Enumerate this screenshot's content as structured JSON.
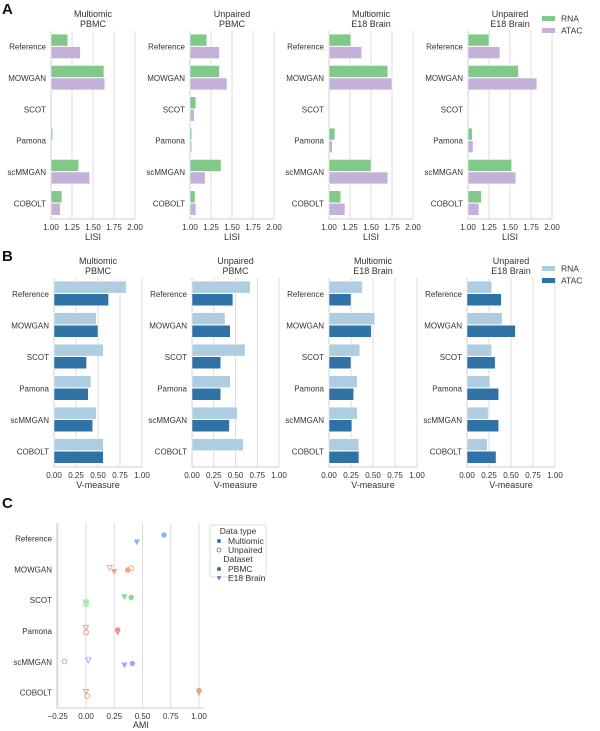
{
  "panel_labels": [
    "A",
    "B",
    "C"
  ],
  "chart_data": [
    {
      "id": "A",
      "type": "bar",
      "orientation": "horizontal",
      "xlabel": "LISI",
      "xlim": [
        1.0,
        2.0
      ],
      "xticks": [
        "1.00",
        "1.25",
        "1.50",
        "1.75",
        "2.00"
      ],
      "xtick_values": [
        1.0,
        1.25,
        1.5,
        1.75,
        2.0
      ],
      "grid": true,
      "legend": {
        "placement": "top-right",
        "entries": [
          {
            "name": "RNA",
            "color": "#82c88a"
          },
          {
            "name": "ATAC",
            "color": "#c3b1d9"
          }
        ]
      },
      "categories": [
        "Reference",
        "MOWGAN",
        "SCOT",
        "Pamona",
        "scMMGAN",
        "COBOLT"
      ],
      "subplots": [
        {
          "title": [
            "Multiomic",
            "PBMC"
          ],
          "series": [
            {
              "name": "RNA",
              "values": [
                1.2,
                1.63,
                1.0,
                1.02,
                1.33,
                1.13
              ]
            },
            {
              "name": "ATAC",
              "values": [
                1.35,
                1.64,
                1.0,
                1.0,
                1.46,
                1.11
              ]
            }
          ]
        },
        {
          "title": [
            "Unpaired",
            "PBMC"
          ],
          "series": [
            {
              "name": "RNA",
              "values": [
                1.2,
                1.35,
                1.07,
                1.02,
                1.37,
                1.06
              ]
            },
            {
              "name": "ATAC",
              "values": [
                1.35,
                1.44,
                1.05,
                1.02,
                1.18,
                1.07
              ]
            }
          ]
        },
        {
          "title": [
            "Multiomic",
            "E18 Brain"
          ],
          "series": [
            {
              "name": "RNA",
              "values": [
                1.26,
                1.7,
                1.0,
                1.07,
                1.5,
                1.14
              ]
            },
            {
              "name": "ATAC",
              "values": [
                1.39,
                1.75,
                1.0,
                1.04,
                1.7,
                1.19
              ]
            }
          ]
        },
        {
          "title": [
            "Unpaired",
            "E18 Brain"
          ],
          "series": [
            {
              "name": "RNA",
              "values": [
                1.25,
                1.6,
                1.01,
                1.05,
                1.52,
                1.16
              ]
            },
            {
              "name": "ATAC",
              "values": [
                1.38,
                1.82,
                1.01,
                1.06,
                1.57,
                1.13
              ]
            }
          ]
        }
      ]
    },
    {
      "id": "B",
      "type": "bar",
      "orientation": "horizontal",
      "xlabel": "V-measure",
      "xlim": [
        0.0,
        1.0
      ],
      "xticks": [
        "0.00",
        "0.25",
        "0.50",
        "0.75",
        "1.00"
      ],
      "xtick_values": [
        0.0,
        0.25,
        0.5,
        0.75,
        1.0
      ],
      "grid": true,
      "legend": {
        "placement": "top-right",
        "entries": [
          {
            "name": "RNA",
            "color": "#aecde0"
          },
          {
            "name": "ATAC",
            "color": "#2f72a6"
          }
        ]
      },
      "categories": [
        "Reference",
        "MOWGAN",
        "SCOT",
        "Pamona",
        "scMMGAN",
        "COBOLT"
      ],
      "subplots": [
        {
          "title": [
            "Multiomic",
            "PBMC"
          ],
          "series": [
            {
              "name": "RNA",
              "values": [
                0.82,
                0.48,
                0.56,
                0.42,
                0.48,
                0.56
              ]
            },
            {
              "name": "ATAC",
              "values": [
                0.62,
                0.5,
                0.37,
                0.39,
                0.44,
                0.56
              ]
            }
          ]
        },
        {
          "title": [
            "Unpaired",
            "PBMC"
          ],
          "series": [
            {
              "name": "RNA",
              "values": [
                0.67,
                0.38,
                0.61,
                0.44,
                0.52,
                0.59
              ]
            },
            {
              "name": "ATAC",
              "values": [
                0.47,
                0.44,
                0.33,
                0.33,
                0.43,
                0.0
              ]
            }
          ]
        },
        {
          "title": [
            "Multiomic",
            "E18 Brain"
          ],
          "series": [
            {
              "name": "RNA",
              "values": [
                0.38,
                0.52,
                0.35,
                0.32,
                0.32,
                0.34
              ]
            },
            {
              "name": "ATAC",
              "values": [
                0.25,
                0.48,
                0.25,
                0.28,
                0.26,
                0.34
              ]
            }
          ]
        },
        {
          "title": [
            "Unpaired",
            "E18 Brain"
          ],
          "series": [
            {
              "name": "RNA",
              "values": [
                0.28,
                0.4,
                0.28,
                0.26,
                0.24,
                0.23
              ]
            },
            {
              "name": "ATAC",
              "values": [
                0.39,
                0.55,
                0.32,
                0.36,
                0.36,
                0.33
              ]
            }
          ]
        }
      ]
    },
    {
      "id": "C",
      "type": "scatter",
      "xlabel": "AMI",
      "xlim": [
        -0.28,
        1.05
      ],
      "xticks": [
        "−0.25",
        "0.00",
        "0.25",
        "0.50",
        "0.75",
        "1.00"
      ],
      "xtick_values": [
        -0.25,
        0.0,
        0.25,
        0.5,
        0.75,
        1.0
      ],
      "grid": true,
      "categories": [
        "Reference",
        "MOWGAN",
        "SCOT",
        "Pamona",
        "scMMGAN",
        "COBOLT"
      ],
      "category_colors": [
        "#8db4f0",
        "#f6a477",
        "#86dc92",
        "#f49090",
        "#b79cf2",
        "#dcaa7c"
      ],
      "legend": {
        "placement": "top-right",
        "groups": [
          {
            "title": "Data type",
            "entries": [
              {
                "name": "Multiomic",
                "marker": "filled-circle"
              },
              {
                "name": "Unpaired",
                "marker": "hollow-circle"
              }
            ]
          },
          {
            "title": "Dataset",
            "entries": [
              {
                "name": "PBMC",
                "marker": "circle"
              },
              {
                "name": "E18 Brain",
                "marker": "triangle-down"
              }
            ]
          }
        ],
        "marker_color": "#3b6fb6"
      },
      "points": [
        {
          "category": "Reference",
          "data_type": "Multiomic",
          "dataset": "PBMC",
          "x": 0.69,
          "offset": -1
        },
        {
          "category": "Reference",
          "data_type": "Multiomic",
          "dataset": "E18 Brain",
          "x": 0.45,
          "offset": 1
        },
        {
          "category": "MOWGAN",
          "data_type": "Unpaired",
          "dataset": "E18 Brain",
          "x": 0.21,
          "offset": -0.5
        },
        {
          "category": "MOWGAN",
          "data_type": "Multiomic",
          "dataset": "E18 Brain",
          "x": 0.25,
          "offset": 0.6
        },
        {
          "category": "MOWGAN",
          "data_type": "Multiomic",
          "dataset": "PBMC",
          "x": 0.37,
          "offset": 0.2
        },
        {
          "category": "MOWGAN",
          "data_type": "Unpaired",
          "dataset": "PBMC",
          "x": 0.4,
          "offset": -0.3
        },
        {
          "category": "SCOT",
          "data_type": "Multiomic",
          "dataset": "E18 Brain",
          "x": 0.34,
          "offset": -1
        },
        {
          "category": "SCOT",
          "data_type": "Multiomic",
          "dataset": "PBMC",
          "x": 0.4,
          "offset": -0.8
        },
        {
          "category": "SCOT",
          "data_type": "Unpaired",
          "dataset": "E18 Brain",
          "x": 0.0,
          "offset": 0.6
        },
        {
          "category": "SCOT",
          "data_type": "Unpaired",
          "dataset": "PBMC",
          "x": 0.0,
          "offset": 1.1
        },
        {
          "category": "Pamona",
          "data_type": "Unpaired",
          "dataset": "E18 Brain",
          "x": 0.0,
          "offset": -1.0
        },
        {
          "category": "Pamona",
          "data_type": "Unpaired",
          "dataset": "PBMC",
          "x": 0.0,
          "offset": 0.4
        },
        {
          "category": "Pamona",
          "data_type": "Multiomic",
          "dataset": "PBMC",
          "x": 0.28,
          "offset": -0.3
        },
        {
          "category": "Pamona",
          "data_type": "Multiomic",
          "dataset": "E18 Brain",
          "x": 0.28,
          "offset": 0.3
        },
        {
          "category": "scMMGAN",
          "data_type": "Unpaired",
          "dataset": "PBMC",
          "x": -0.19,
          "offset": -0.1
        },
        {
          "category": "scMMGAN",
          "data_type": "Unpaired",
          "dataset": "E18 Brain",
          "x": 0.02,
          "offset": -0.5
        },
        {
          "category": "scMMGAN",
          "data_type": "Multiomic",
          "dataset": "E18 Brain",
          "x": 0.34,
          "offset": 0.9
        },
        {
          "category": "scMMGAN",
          "data_type": "Multiomic",
          "dataset": "PBMC",
          "x": 0.41,
          "offset": 0.5
        },
        {
          "category": "COBOLT",
          "data_type": "Unpaired",
          "dataset": "E18 Brain",
          "x": 0.0,
          "offset": -0.3
        },
        {
          "category": "COBOLT",
          "data_type": "Unpaired",
          "dataset": "PBMC",
          "x": 0.01,
          "offset": 1.0
        },
        {
          "category": "COBOLT",
          "data_type": "Multiomic",
          "dataset": "PBMC",
          "x": 1.0,
          "offset": -0.6
        },
        {
          "category": "COBOLT",
          "data_type": "Multiomic",
          "dataset": "E18 Brain",
          "x": 1.0,
          "offset": 0.0
        }
      ]
    }
  ]
}
